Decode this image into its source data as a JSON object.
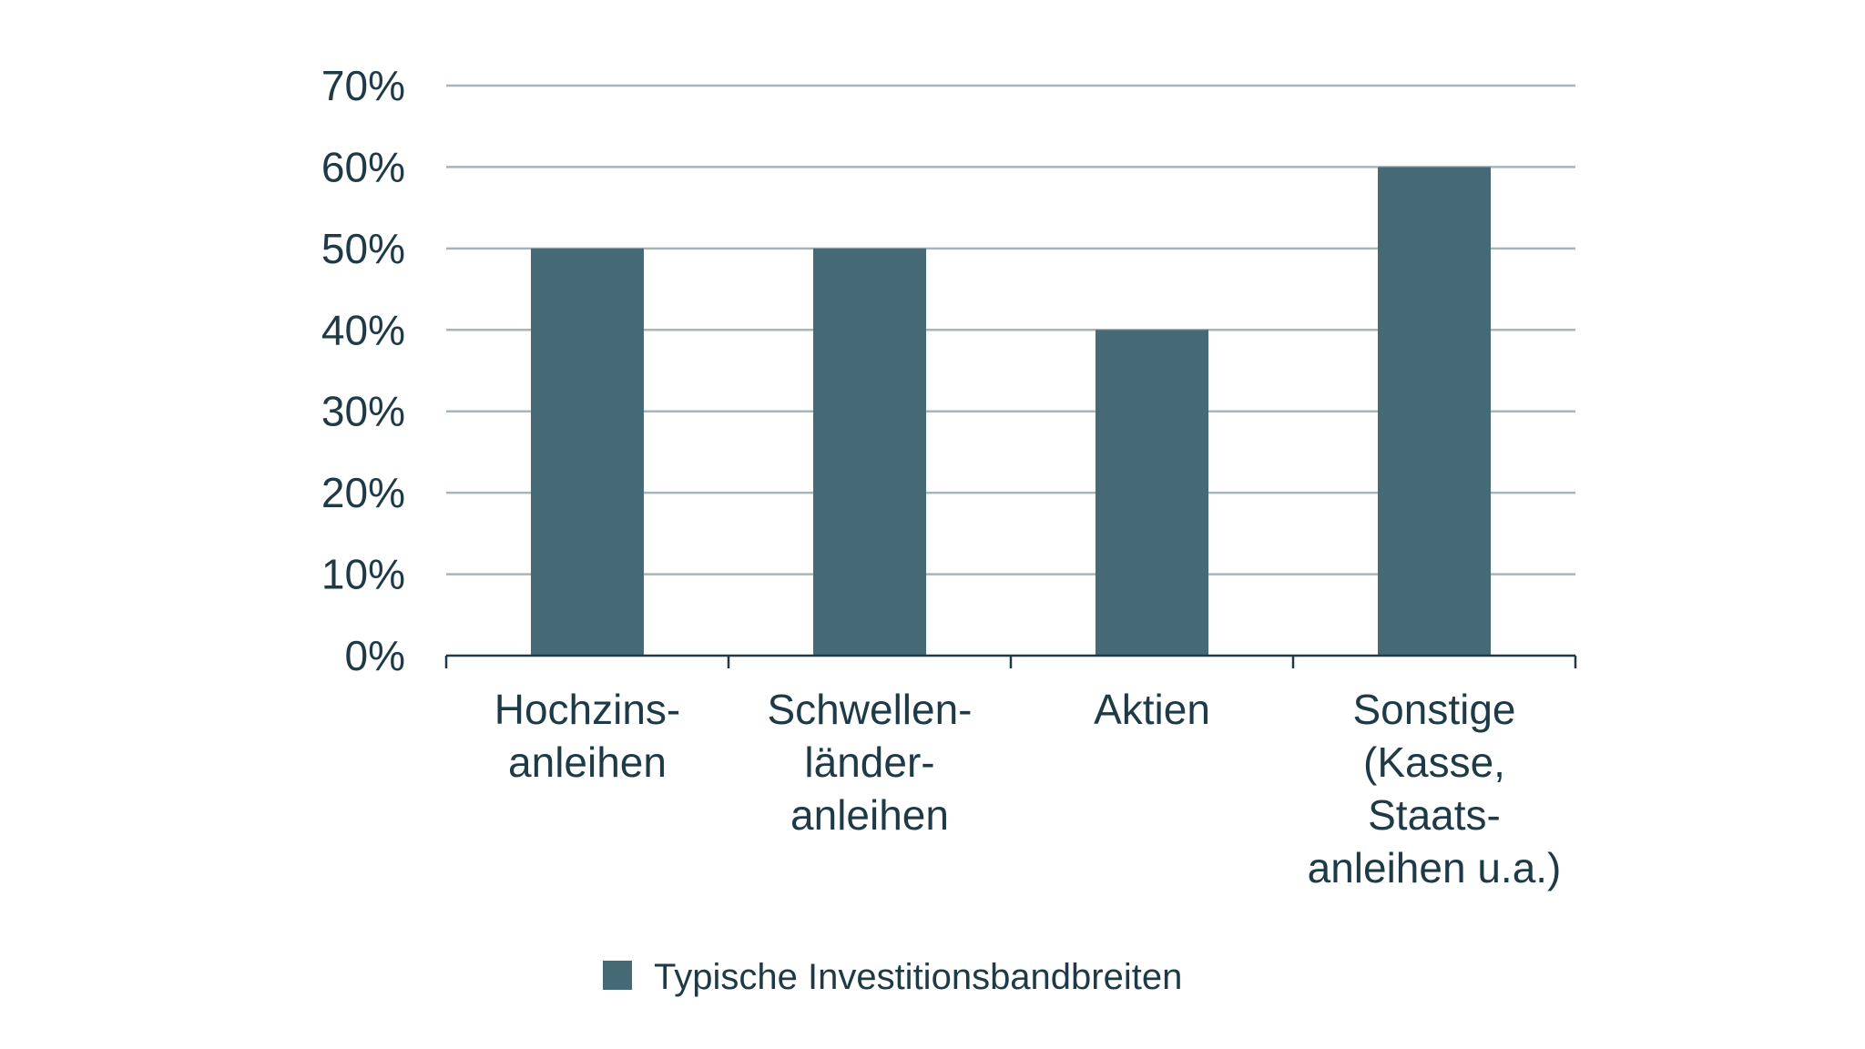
{
  "chart_data": {
    "type": "bar",
    "title": "",
    "xlabel": "",
    "ylabel": "",
    "categories": [
      [
        "Hochzins-",
        "anleihen"
      ],
      [
        "Schwellen-",
        "länder-",
        "anleihen"
      ],
      [
        "Aktien"
      ],
      [
        "Sonstige",
        "(Kasse,",
        "Staats-",
        "anleihen u.a.)"
      ]
    ],
    "series": [
      {
        "name": "Typische Investitionsbandbreiten",
        "values": [
          50,
          50,
          40,
          60
        ],
        "color": "#456a76"
      }
    ],
    "ylim": [
      0,
      70
    ],
    "yticks": [
      0,
      10,
      20,
      30,
      40,
      50,
      60,
      70
    ],
    "ytick_format": "{v}%",
    "grid": true,
    "legend_position": "bottom-center",
    "colors": {
      "grid": "#a7b4b9",
      "axis": "#1e3a46",
      "text": "#1e3a46"
    }
  }
}
